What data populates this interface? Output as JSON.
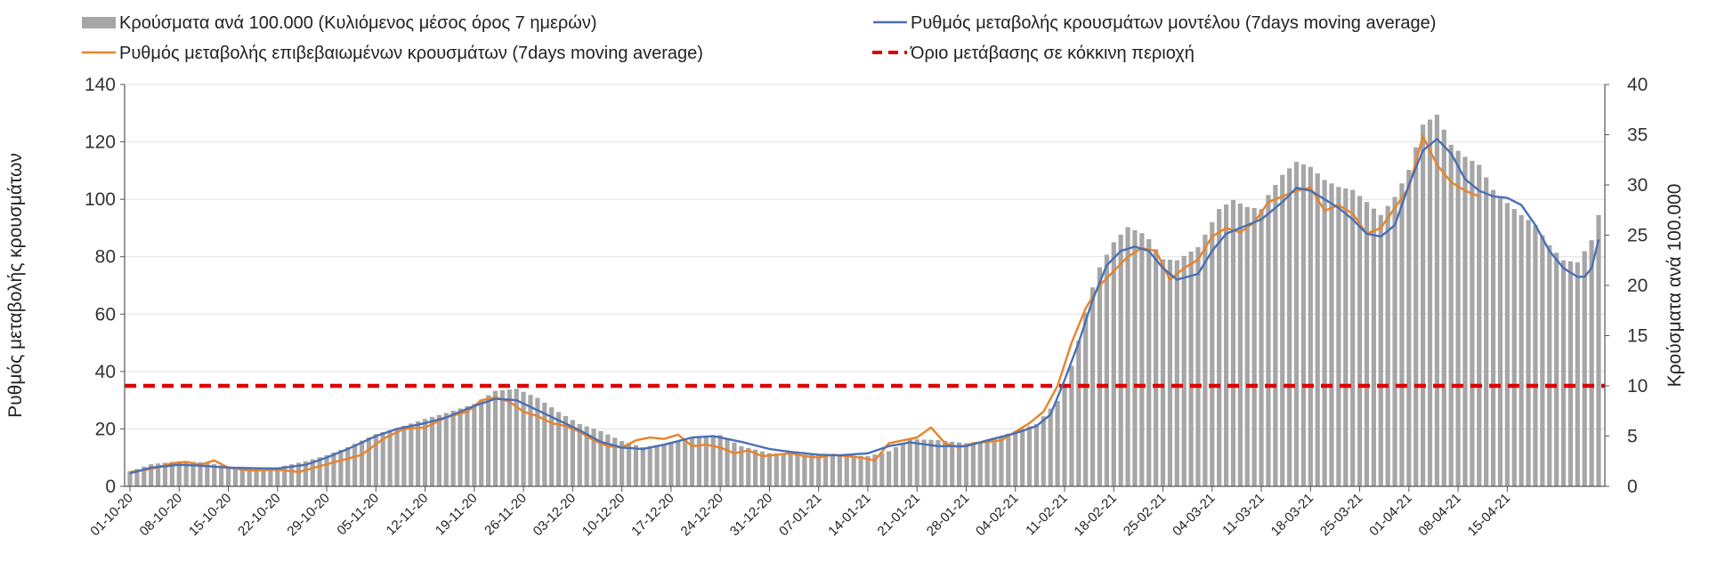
{
  "chart_data": {
    "type": "bar+line",
    "title": "",
    "legend": {
      "cases_bars": "Κρούσματα ανά 100.000 (Κυλιόμενος μέσος όρος 7 ημερών)",
      "model_line": "Ρυθμός μεταβολής κρουσμάτων μοντέλου (7days moving average)",
      "confirmed_line": "Ρυθμός μεταβολής επιβεβαιωμένων κρουσμάτων (7days moving average)",
      "threshold_line": "Όριο μετάβασης σε κόκκινη περιοχή"
    },
    "ylabel_left": "Ρυθμός μεταβολής κρουσμάτων",
    "ylabel_right": "Κρούσματα ανά 100.000",
    "ylim_left": [
      0,
      140
    ],
    "ylim_right": [
      0,
      40
    ],
    "yticks_left": [
      0,
      20,
      40,
      60,
      80,
      100,
      120,
      140
    ],
    "yticks_right": [
      0,
      5,
      10,
      15,
      20,
      25,
      30,
      35,
      40
    ],
    "date_labels": [
      "01-10-20",
      "08-10-20",
      "15-10-20",
      "22-10-20",
      "29-10-20",
      "05-11-20",
      "12-11-20",
      "19-11-20",
      "26-11-20",
      "03-12-20",
      "10-12-20",
      "17-12-20",
      "24-12-20",
      "31-12-20",
      "07-01-21",
      "14-01-21",
      "21-01-21",
      "28-01-21",
      "04-02-21",
      "11-02-21",
      "18-02-21",
      "25-02-21",
      "04-03-21",
      "11-03-21",
      "18-03-21",
      "25-03-21",
      "01-04-21",
      "08-04-21",
      "15-04-21"
    ],
    "x_start_day": 0,
    "x_end_day": 196,
    "label_step_days": 7,
    "threshold_value_left": 35,
    "colors": {
      "bars": "#a6a6a6",
      "model_line": "#4a6fb5",
      "confirmed_line": "#e8832a",
      "threshold": "#dd0000",
      "gridline": "#e0e0e0",
      "axis": "#555555"
    },
    "series": [
      {
        "name": "Κρούσματα ανά 100.000 (Κυλιόμενος μέσος όρος 7 ημερών)",
        "axis": "right",
        "kind": "bar",
        "key_points": [
          [
            0,
            1.5
          ],
          [
            3,
            2.2
          ],
          [
            7,
            2.5
          ],
          [
            10,
            2.4
          ],
          [
            14,
            2.0
          ],
          [
            18,
            1.8
          ],
          [
            21,
            1.9
          ],
          [
            25,
            2.5
          ],
          [
            28,
            3.1
          ],
          [
            31,
            3.9
          ],
          [
            35,
            5.2
          ],
          [
            38,
            5.8
          ],
          [
            42,
            6.7
          ],
          [
            45,
            7.3
          ],
          [
            49,
            8.2
          ],
          [
            52,
            9.5
          ],
          [
            55,
            9.7
          ],
          [
            58,
            8.8
          ],
          [
            61,
            7.4
          ],
          [
            64,
            6.2
          ],
          [
            67,
            5.5
          ],
          [
            70,
            4.5
          ],
          [
            73,
            3.9
          ],
          [
            76,
            4.2
          ],
          [
            80,
            4.8
          ],
          [
            84,
            5.1
          ],
          [
            87,
            4.0
          ],
          [
            91,
            3.3
          ],
          [
            94,
            3.2
          ],
          [
            98,
            3.1
          ],
          [
            101,
            3.1
          ],
          [
            105,
            3.0
          ],
          [
            108,
            3.5
          ],
          [
            111,
            4.7
          ],
          [
            115,
            4.6
          ],
          [
            119,
            4.3
          ],
          [
            122,
            4.5
          ],
          [
            126,
            5.5
          ],
          [
            129,
            6.2
          ],
          [
            132,
            8.5
          ],
          [
            133,
            10.2
          ],
          [
            134,
            12.0
          ],
          [
            135,
            14.5
          ],
          [
            136,
            17.3
          ],
          [
            137,
            19.8
          ],
          [
            138,
            21.8
          ],
          [
            140,
            24.3
          ],
          [
            142,
            25.8
          ],
          [
            144,
            25.2
          ],
          [
            145,
            24.6
          ],
          [
            147,
            22.6
          ],
          [
            149,
            22.5
          ],
          [
            152,
            23.8
          ],
          [
            154,
            26.3
          ],
          [
            155,
            27.6
          ],
          [
            157,
            28.5
          ],
          [
            159,
            27.8
          ],
          [
            161,
            27.6
          ],
          [
            162,
            29.0
          ],
          [
            164,
            31.0
          ],
          [
            166,
            32.3
          ],
          [
            168,
            31.8
          ],
          [
            170,
            30.5
          ],
          [
            172,
            29.8
          ],
          [
            174,
            29.5
          ],
          [
            176,
            28.3
          ],
          [
            178,
            27.0
          ],
          [
            180,
            28.8
          ],
          [
            182,
            31.5
          ],
          [
            184,
            36.0
          ],
          [
            186,
            37.0
          ],
          [
            188,
            34.0
          ],
          [
            190,
            32.8
          ],
          [
            192,
            32.0
          ],
          [
            194,
            29.5
          ],
          [
            196,
            28.2
          ],
          [
            198,
            27.0
          ],
          [
            200,
            26.0
          ],
          [
            202,
            24.0
          ],
          [
            204,
            22.5
          ],
          [
            206,
            22.3
          ],
          [
            208,
            24.5
          ],
          [
            209,
            27.0
          ]
        ]
      },
      {
        "name": "Ρυθμός μεταβολής κρουσμάτων μοντέλου (7days moving average)",
        "axis": "left",
        "kind": "line",
        "key_points": [
          [
            0,
            4.5
          ],
          [
            3,
            6.5
          ],
          [
            7,
            7.5
          ],
          [
            10,
            7.2
          ],
          [
            14,
            6.5
          ],
          [
            18,
            6.3
          ],
          [
            21,
            6.2
          ],
          [
            25,
            7.5
          ],
          [
            28,
            10.0
          ],
          [
            31,
            13.0
          ],
          [
            35,
            17.5
          ],
          [
            38,
            20.0
          ],
          [
            42,
            22.0
          ],
          [
            45,
            24.0
          ],
          [
            49,
            28.0
          ],
          [
            52,
            30.5
          ],
          [
            55,
            30.0
          ],
          [
            58,
            26.5
          ],
          [
            61,
            23.0
          ],
          [
            64,
            19.5
          ],
          [
            67,
            15.5
          ],
          [
            70,
            13.5
          ],
          [
            73,
            13.0
          ],
          [
            76,
            14.5
          ],
          [
            80,
            17.0
          ],
          [
            83,
            17.5
          ],
          [
            87,
            15.5
          ],
          [
            91,
            13.0
          ],
          [
            94,
            12.0
          ],
          [
            98,
            11.0
          ],
          [
            101,
            10.8
          ],
          [
            105,
            11.5
          ],
          [
            108,
            14.0
          ],
          [
            111,
            15.3
          ],
          [
            115,
            14.0
          ],
          [
            119,
            14.0
          ],
          [
            122,
            16.0
          ],
          [
            126,
            18.5
          ],
          [
            129,
            21.0
          ],
          [
            131,
            25.0
          ],
          [
            133,
            37.0
          ],
          [
            135,
            50.0
          ],
          [
            137,
            65.0
          ],
          [
            139,
            77.0
          ],
          [
            141,
            82.0
          ],
          [
            143,
            83.5
          ],
          [
            145,
            82.0
          ],
          [
            147,
            76.0
          ],
          [
            149,
            72.0
          ],
          [
            152,
            74.0
          ],
          [
            154,
            82.0
          ],
          [
            156,
            88.0
          ],
          [
            159,
            91.0
          ],
          [
            161,
            93.0
          ],
          [
            164,
            99.0
          ],
          [
            166,
            104.0
          ],
          [
            168,
            103.0
          ],
          [
            170,
            100.0
          ],
          [
            172,
            97.0
          ],
          [
            174,
            93.0
          ],
          [
            176,
            88.0
          ],
          [
            178,
            87.0
          ],
          [
            180,
            91.0
          ],
          [
            182,
            105.0
          ],
          [
            184,
            117.0
          ],
          [
            186,
            121.0
          ],
          [
            188,
            116.0
          ],
          [
            190,
            107.0
          ],
          [
            192,
            103.0
          ],
          [
            194,
            101.0
          ],
          [
            196,
            100.5
          ],
          [
            198,
            98.0
          ],
          [
            200,
            91.0
          ],
          [
            202,
            82.0
          ],
          [
            204,
            76.0
          ],
          [
            206,
            73.0
          ],
          [
            207,
            73.0
          ],
          [
            208,
            76.0
          ],
          [
            209,
            86.0
          ]
        ]
      },
      {
        "name": "Ρυθμός μεταβολής επιβεβαιωμένων κρουσμάτων (7days moving average)",
        "axis": "left",
        "kind": "line",
        "key_points": [
          [
            0,
            5.0
          ],
          [
            3,
            6.0
          ],
          [
            6,
            8.0
          ],
          [
            8,
            8.5
          ],
          [
            10,
            7.5
          ],
          [
            12,
            9.0
          ],
          [
            14,
            6.5
          ],
          [
            17,
            5.5
          ],
          [
            21,
            5.8
          ],
          [
            24,
            5.0
          ],
          [
            27,
            7.0
          ],
          [
            30,
            9.0
          ],
          [
            33,
            11.0
          ],
          [
            36,
            16.5
          ],
          [
            39,
            20.0
          ],
          [
            42,
            20.5
          ],
          [
            45,
            24.0
          ],
          [
            48,
            26.0
          ],
          [
            50,
            30.0
          ],
          [
            52,
            31.0
          ],
          [
            54,
            29.5
          ],
          [
            56,
            26.0
          ],
          [
            58,
            24.5
          ],
          [
            60,
            22.0
          ],
          [
            62,
            21.0
          ],
          [
            64,
            19.0
          ],
          [
            66,
            16.0
          ],
          [
            68,
            14.0
          ],
          [
            70,
            13.5
          ],
          [
            72,
            16.0
          ],
          [
            74,
            17.0
          ],
          [
            76,
            16.5
          ],
          [
            78,
            18.0
          ],
          [
            80,
            14.0
          ],
          [
            82,
            14.5
          ],
          [
            84,
            13.5
          ],
          [
            86,
            11.5
          ],
          [
            88,
            12.5
          ],
          [
            90,
            10.5
          ],
          [
            92,
            11.0
          ],
          [
            94,
            11.5
          ],
          [
            96,
            10.5
          ],
          [
            98,
            10.0
          ],
          [
            100,
            11.0
          ],
          [
            102,
            10.5
          ],
          [
            104,
            10.0
          ],
          [
            106,
            9.0
          ],
          [
            108,
            15.0
          ],
          [
            110,
            16.0
          ],
          [
            112,
            17.0
          ],
          [
            114,
            20.5
          ],
          [
            116,
            15.0
          ],
          [
            118,
            13.5
          ],
          [
            120,
            15.0
          ],
          [
            122,
            15.5
          ],
          [
            124,
            16.0
          ],
          [
            126,
            19.0
          ],
          [
            128,
            22.0
          ],
          [
            130,
            26.0
          ],
          [
            132,
            35.0
          ],
          [
            134,
            50.0
          ],
          [
            136,
            62.0
          ],
          [
            138,
            70.0
          ],
          [
            140,
            75.0
          ],
          [
            142,
            80.0
          ],
          [
            144,
            83.0
          ],
          [
            146,
            82.0
          ],
          [
            148,
            72.0
          ],
          [
            150,
            76.0
          ],
          [
            152,
            79.0
          ],
          [
            154,
            87.0
          ],
          [
            156,
            90.0
          ],
          [
            158,
            88.5
          ],
          [
            160,
            92.0
          ],
          [
            162,
            99.0
          ],
          [
            164,
            101.0
          ],
          [
            166,
            103.0
          ],
          [
            168,
            104.0
          ],
          [
            170,
            96.0
          ],
          [
            172,
            98.0
          ],
          [
            174,
            95.0
          ],
          [
            176,
            88.0
          ],
          [
            178,
            90.0
          ],
          [
            180,
            97.0
          ],
          [
            182,
            104.0
          ],
          [
            184,
            122.0
          ],
          [
            186,
            112.0
          ],
          [
            188,
            106.0
          ],
          [
            190,
            103.0
          ],
          [
            192,
            101.0
          ]
        ]
      },
      {
        "name": "Όριο μετάβασης σε κόκκινη περιοχή",
        "axis": "left",
        "kind": "hline",
        "value": 35
      }
    ]
  }
}
